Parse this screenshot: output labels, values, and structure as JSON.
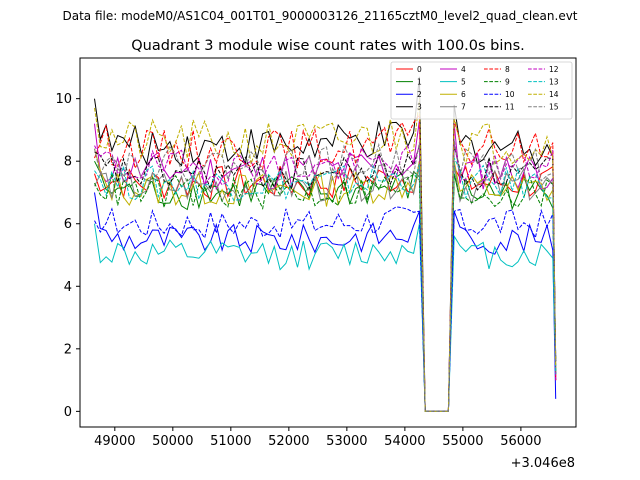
{
  "figure": {
    "suptitle": "Data file: modeM0/AS1C04_001T01_9000003126_21165cztM0_level2_quad_clean.evt"
  },
  "chart_data": {
    "type": "line",
    "title": "Quadrant 3 module wise count rates with 100.0s bins.",
    "xlabel": "",
    "ylabel": "",
    "x_offset_label": "+3.046e8",
    "xlim": [
      48400,
      56950
    ],
    "ylim": [
      -0.5,
      11.3
    ],
    "xticks": [
      49000,
      50000,
      51000,
      52000,
      53000,
      54000,
      55000,
      56000
    ],
    "xtick_labels": [
      "49000",
      "50000",
      "51000",
      "52000",
      "53000",
      "54000",
      "55000",
      "56000"
    ],
    "yticks": [
      0,
      2,
      4,
      6,
      8,
      10
    ],
    "ytick_labels": [
      "0",
      "2",
      "4",
      "6",
      "8",
      "10"
    ],
    "grid": false,
    "legend_position": "top-right",
    "x_start": 48650,
    "x_step": 100,
    "gap_x": [
      54350,
      54450,
      54550,
      54650,
      54750
    ],
    "x_end": 56550,
    "series": [
      {
        "name": "0",
        "color": "#ff0000",
        "dash": "solid",
        "base": 7.3,
        "amp": 0.35,
        "shape": [
          7.6,
          7.0,
          8.0,
          7.2
        ]
      },
      {
        "name": "1",
        "color": "#008000",
        "dash": "solid",
        "base": 7.0,
        "amp": 0.35,
        "shape": [
          8.0,
          6.8,
          7.5,
          7.0
        ]
      },
      {
        "name": "2",
        "color": "#0000ff",
        "dash": "solid",
        "base": 5.5,
        "amp": 0.3,
        "shape": [
          7.0,
          5.3,
          6.4,
          5.8
        ]
      },
      {
        "name": "3",
        "color": "#000000",
        "dash": "solid",
        "base": 8.5,
        "amp": 0.4,
        "shape": [
          10.0,
          8.6,
          10.7,
          9.2
        ]
      },
      {
        "name": "4",
        "color": "#c000c0",
        "dash": "solid",
        "base": 7.7,
        "amp": 0.4,
        "shape": [
          9.2,
          7.5,
          9.3,
          8.6
        ]
      },
      {
        "name": "5",
        "color": "#00c0c0",
        "dash": "solid",
        "base": 5.0,
        "amp": 0.3,
        "shape": [
          6.0,
          4.8,
          6.0,
          5.0
        ]
      },
      {
        "name": "6",
        "color": "#c0b000",
        "dash": "solid",
        "base": 7.1,
        "amp": 0.35,
        "shape": [
          8.4,
          6.9,
          8.0,
          7.4
        ]
      },
      {
        "name": "7",
        "color": "#808080",
        "dash": "solid",
        "base": 7.2,
        "amp": 0.35,
        "shape": [
          7.2,
          7.0,
          7.8,
          7.3
        ]
      },
      {
        "name": "8",
        "color": "#ff0000",
        "dash": "dashed",
        "base": 8.4,
        "amp": 0.4,
        "shape": [
          8.1,
          8.5,
          9.5,
          8.7
        ]
      },
      {
        "name": "9",
        "color": "#008000",
        "dash": "dashed",
        "base": 7.0,
        "amp": 0.35,
        "shape": [
          7.3,
          6.9,
          7.4,
          7.0
        ]
      },
      {
        "name": "10",
        "color": "#0000ff",
        "dash": "dashed",
        "base": 6.0,
        "amp": 0.3,
        "shape": [
          6.1,
          5.9,
          6.4,
          5.8
        ]
      },
      {
        "name": "11",
        "color": "#000000",
        "dash": "dashed",
        "base": 7.6,
        "amp": 0.35,
        "shape": [
          8.3,
          7.4,
          8.5,
          7.9
        ]
      },
      {
        "name": "12",
        "color": "#c000c0",
        "dash": "dashed",
        "base": 7.8,
        "amp": 0.35,
        "shape": [
          8.5,
          7.6,
          8.5,
          8.0
        ]
      },
      {
        "name": "13",
        "color": "#00c0c0",
        "dash": "dashed",
        "base": 7.3,
        "amp": 0.35,
        "shape": [
          7.7,
          7.1,
          7.9,
          7.5
        ]
      },
      {
        "name": "14",
        "color": "#c0b000",
        "dash": "dashed",
        "base": 8.6,
        "amp": 0.45,
        "shape": [
          9.7,
          8.4,
          10.0,
          8.8
        ]
      },
      {
        "name": "15",
        "color": "#808080",
        "dash": "dashed",
        "base": 7.9,
        "amp": 0.35,
        "shape": [
          8.4,
          7.7,
          8.6,
          8.1
        ]
      }
    ]
  }
}
